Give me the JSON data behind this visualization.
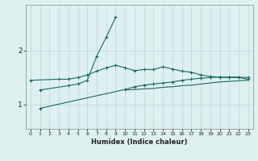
{
  "xlabel": "Humidex (Indice chaleur)",
  "x_values": [
    0,
    1,
    2,
    3,
    4,
    5,
    6,
    7,
    8,
    9,
    10,
    11,
    12,
    13,
    14,
    15,
    16,
    17,
    18,
    19,
    20,
    21,
    22,
    23
  ],
  "line1": [
    1.45,
    null,
    null,
    1.47,
    1.47,
    1.5,
    1.55,
    1.62,
    1.68,
    1.73,
    1.68,
    1.63,
    1.65,
    1.65,
    1.7,
    1.66,
    1.62,
    1.6,
    1.55,
    1.52,
    1.51,
    1.5,
    1.5,
    1.47
  ],
  "line2": [
    null,
    1.27,
    null,
    null,
    1.35,
    1.38,
    1.45,
    1.9,
    2.25,
    2.62,
    null,
    null,
    null,
    null,
    null,
    null,
    null,
    null,
    null,
    null,
    null,
    null,
    null,
    null
  ],
  "line3": [
    null,
    0.93,
    null,
    null,
    null,
    null,
    null,
    null,
    null,
    null,
    1.28,
    1.33,
    1.36,
    1.38,
    1.4,
    1.42,
    1.45,
    1.47,
    1.49,
    1.5,
    1.51,
    1.51,
    1.51,
    1.5
  ],
  "line4": [
    null,
    null,
    null,
    null,
    null,
    null,
    null,
    null,
    null,
    null,
    1.27,
    1.28,
    1.29,
    1.3,
    1.32,
    1.33,
    1.35,
    1.36,
    1.38,
    1.4,
    1.42,
    1.43,
    1.44,
    1.45
  ],
  "bg_color": "#dff0f0",
  "grid_color": "#b8d8d8",
  "line_color": "#1a6b5a",
  "yticks": [
    1,
    2
  ],
  "ylim": [
    0.55,
    2.85
  ],
  "xlim": [
    -0.5,
    23.5
  ]
}
